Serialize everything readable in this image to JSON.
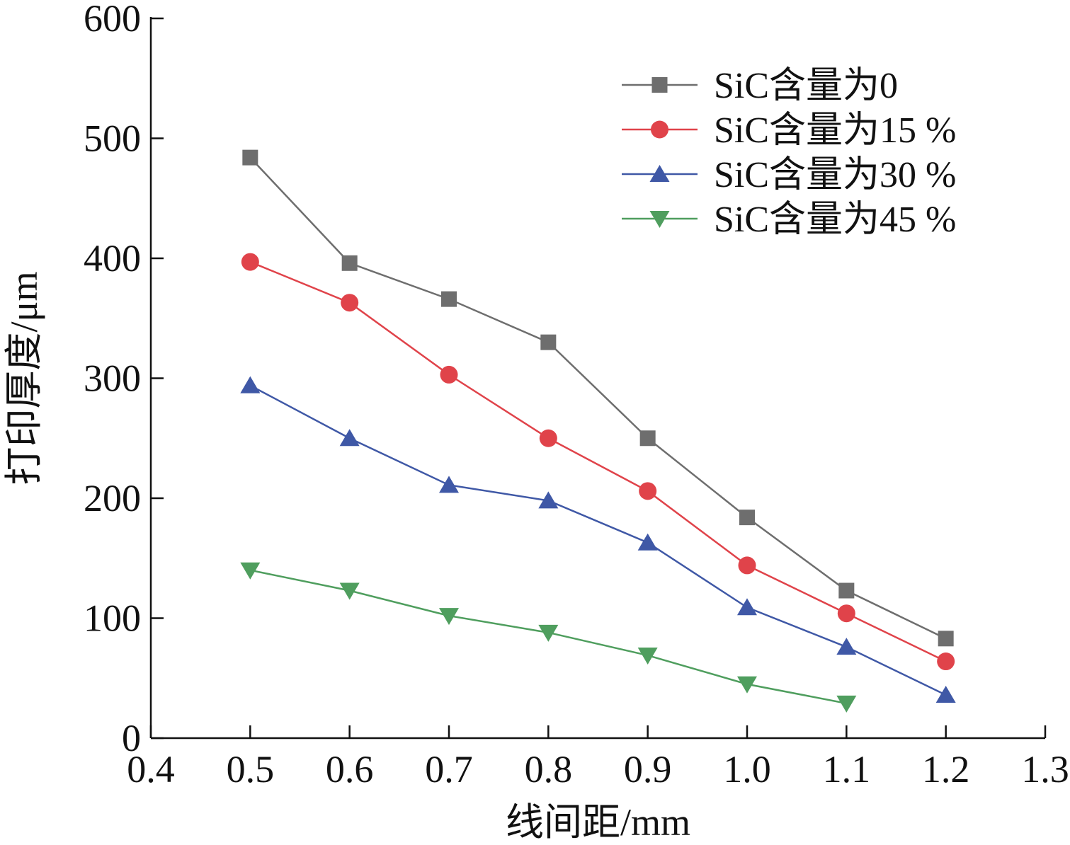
{
  "chart_data": {
    "type": "line",
    "title": "",
    "xlabel": "线间距/mm",
    "ylabel": "打印厚度/μm",
    "xlim": [
      0.4,
      1.3
    ],
    "ylim": [
      0,
      600
    ],
    "xticks": [
      "0.4",
      "0.5",
      "0.6",
      "0.7",
      "0.8",
      "0.9",
      "1.0",
      "1.1",
      "1.2",
      "1.3"
    ],
    "yticks": [
      "0",
      "100",
      "200",
      "300",
      "400",
      "500",
      "600"
    ],
    "grid": false,
    "legend_position": "top-right",
    "series": [
      {
        "name": "SiC含量为0",
        "color": "#6e6e6e",
        "marker": "square",
        "x": [
          0.5,
          0.6,
          0.7,
          0.8,
          0.9,
          1.0,
          1.1,
          1.2
        ],
        "y": [
          484,
          396,
          366,
          330,
          250,
          184,
          123,
          83
        ]
      },
      {
        "name": "SiC含量为15 %",
        "color": "#e0434a",
        "marker": "circle",
        "x": [
          0.5,
          0.6,
          0.7,
          0.8,
          0.9,
          1.0,
          1.1,
          1.2
        ],
        "y": [
          397,
          363,
          303,
          250,
          206,
          144,
          104,
          64
        ]
      },
      {
        "name": "SiC含量为30 %",
        "color": "#3f58a6",
        "marker": "triangle-up",
        "x": [
          0.5,
          0.6,
          0.7,
          0.8,
          0.9,
          1.0,
          1.1,
          1.2
        ],
        "y": [
          294,
          250,
          211,
          198,
          163,
          109,
          76,
          36
        ]
      },
      {
        "name": "SiC含量为45 %",
        "color": "#4f9e5e",
        "marker": "triangle-down",
        "x": [
          0.5,
          0.6,
          0.7,
          0.8,
          0.9,
          1.0,
          1.1
        ],
        "y": [
          140,
          123,
          102,
          88,
          69,
          45,
          29
        ]
      }
    ]
  }
}
